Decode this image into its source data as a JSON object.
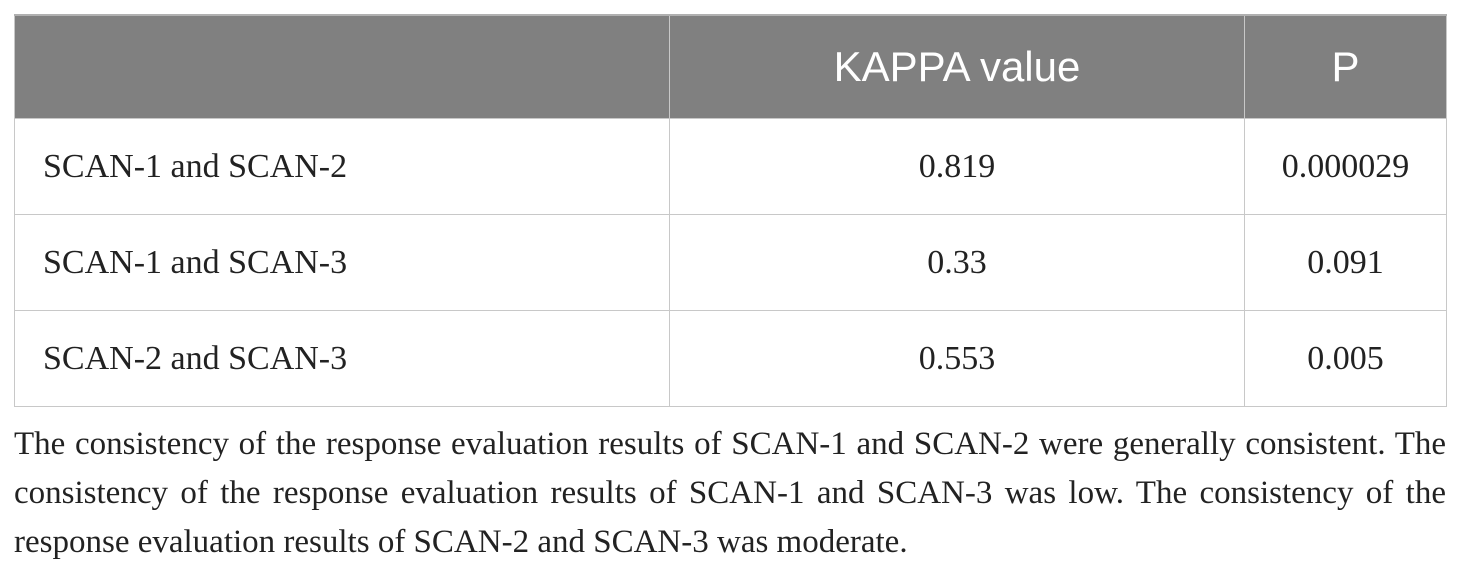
{
  "table": {
    "columns": [
      "",
      "KAPPA value",
      "P"
    ],
    "rows": [
      {
        "comparison": "SCAN-1 and SCAN-2",
        "kappa": "0.819",
        "p": "0.000029"
      },
      {
        "comparison": "SCAN-1 and SCAN-3",
        "kappa": "0.33",
        "p": "0.091"
      },
      {
        "comparison": "SCAN-2 and SCAN-3",
        "kappa": "0.553",
        "p": "0.005"
      }
    ]
  },
  "footnote": "The consistency of the response evaluation results of SCAN-1 and SCAN-2 were generally consistent. The consistency of the response evaluation results of SCAN-1 and SCAN-3 was low. The consistency of the response evaluation results of SCAN-2 and SCAN-3 was moderate."
}
